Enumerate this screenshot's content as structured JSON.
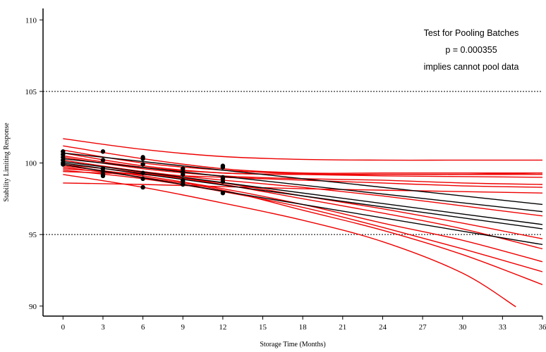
{
  "chart_data": {
    "type": "line",
    "title": "",
    "xlabel": "Storage Time (Months)",
    "ylabel": "Stability Limiting Response",
    "xlim": [
      -1.5,
      36
    ],
    "ylim": [
      89.3,
      110.8
    ],
    "xticks": [
      0,
      3,
      6,
      9,
      12,
      15,
      18,
      21,
      24,
      27,
      30,
      33,
      36
    ],
    "yticks": [
      90,
      95,
      100,
      105,
      110
    ],
    "reference_lines": [
      95,
      105
    ],
    "annotations": [
      "Test for Pooling Batches",
      "p = 0.000355",
      "implies cannot pool data"
    ],
    "colors": {
      "fit_line": "#000000",
      "confidence_band": "#ee0000",
      "points": "#000000",
      "reference_line": "#000000"
    },
    "points": [
      {
        "x": 0,
        "y": 100.8
      },
      {
        "x": 0,
        "y": 100.6
      },
      {
        "x": 0,
        "y": 100.4
      },
      {
        "x": 0,
        "y": 100.2
      },
      {
        "x": 0,
        "y": 100.0
      },
      {
        "x": 0,
        "y": 99.9
      },
      {
        "x": 3,
        "y": 100.8
      },
      {
        "x": 3,
        "y": 100.2
      },
      {
        "x": 3,
        "y": 99.6
      },
      {
        "x": 3,
        "y": 99.4
      },
      {
        "x": 3,
        "y": 99.2
      },
      {
        "x": 3,
        "y": 99.1
      },
      {
        "x": 6,
        "y": 100.4
      },
      {
        "x": 6,
        "y": 100.3
      },
      {
        "x": 6,
        "y": 99.9
      },
      {
        "x": 6,
        "y": 99.3
      },
      {
        "x": 6,
        "y": 98.9
      },
      {
        "x": 6,
        "y": 98.3
      },
      {
        "x": 9,
        "y": 99.6
      },
      {
        "x": 9,
        "y": 99.4
      },
      {
        "x": 9,
        "y": 99.2
      },
      {
        "x": 9,
        "y": 98.8
      },
      {
        "x": 9,
        "y": 98.7
      },
      {
        "x": 9,
        "y": 98.5
      },
      {
        "x": 12,
        "y": 99.8
      },
      {
        "x": 12,
        "y": 99.7
      },
      {
        "x": 12,
        "y": 99.0
      },
      {
        "x": 12,
        "y": 98.9
      },
      {
        "x": 12,
        "y": 98.7
      },
      {
        "x": 12,
        "y": 97.9
      }
    ],
    "series": [
      {
        "kind": "fit",
        "x": [
          0,
          36
        ],
        "y": [
          100.7,
          97.1
        ]
      },
      {
        "kind": "fit",
        "x": [
          0,
          36
        ],
        "y": [
          100.3,
          96.6
        ]
      },
      {
        "kind": "fit",
        "x": [
          0,
          36
        ],
        "y": [
          100.1,
          95.7
        ]
      },
      {
        "kind": "fit",
        "x": [
          0,
          36
        ],
        "y": [
          100.0,
          95.4
        ]
      },
      {
        "kind": "fit",
        "x": [
          0,
          36
        ],
        "y": [
          99.9,
          94.3
        ]
      },
      {
        "kind": "band",
        "x": [
          0,
          6,
          12,
          18,
          24,
          30,
          36
        ],
        "y": [
          101.7,
          100.95,
          100.45,
          100.25,
          100.2,
          100.2,
          100.2
        ]
      },
      {
        "kind": "band",
        "x": [
          0,
          6,
          12,
          18,
          24,
          30,
          36
        ],
        "y": [
          98.6,
          98.5,
          98.35,
          98.2,
          98.1,
          98.0,
          97.9
        ]
      },
      {
        "kind": "band",
        "x": [
          0,
          6,
          12,
          18,
          24,
          30,
          36
        ],
        "y": [
          101.2,
          100.3,
          99.6,
          99.3,
          99.3,
          99.3,
          99.3
        ]
      },
      {
        "kind": "band",
        "x": [
          0,
          6,
          12,
          18,
          24,
          30,
          36
        ],
        "y": [
          99.4,
          99.2,
          99.0,
          98.8,
          98.6,
          98.4,
          98.3
        ]
      },
      {
        "kind": "band",
        "x": [
          0,
          6,
          12,
          18,
          24,
          30,
          36
        ],
        "y": [
          100.9,
          100.0,
          99.5,
          99.25,
          99.2,
          99.2,
          99.2
        ]
      },
      {
        "kind": "band",
        "x": [
          0,
          6,
          12,
          18,
          24,
          30,
          36
        ],
        "y": [
          100.7,
          99.8,
          99.3,
          99.2,
          99.1,
          99.05,
          99.0
        ]
      },
      {
        "kind": "band",
        "x": [
          0,
          6,
          12,
          18,
          24,
          30,
          36
        ],
        "y": [
          100.5,
          99.7,
          99.3,
          99.2,
          99.2,
          99.2,
          99.3
        ]
      },
      {
        "kind": "band",
        "x": [
          0,
          6,
          12,
          18,
          24,
          30,
          36
        ],
        "y": [
          100.4,
          99.6,
          99.1,
          98.9,
          98.8,
          98.6,
          98.5
        ]
      },
      {
        "kind": "band",
        "x": [
          0,
          6,
          12,
          18,
          24,
          30,
          36
        ],
        "y": [
          100.2,
          99.4,
          98.8,
          98.3,
          97.7,
          97.0,
          96.3
        ]
      },
      {
        "kind": "band",
        "x": [
          0,
          6,
          12,
          18,
          24,
          30,
          36
        ],
        "y": [
          99.6,
          99.2,
          98.6,
          97.7,
          96.8,
          95.8,
          94.7
        ]
      },
      {
        "kind": "band",
        "x": [
          0,
          6,
          12,
          18,
          24,
          30,
          36
        ],
        "y": [
          99.9,
          99.3,
          98.5,
          97.5,
          96.5,
          95.4,
          94.0
        ]
      },
      {
        "kind": "band",
        "x": [
          0,
          6,
          12,
          18,
          24,
          30,
          36
        ],
        "y": [
          99.8,
          99.1,
          98.2,
          97.1,
          95.8,
          94.6,
          93.1
        ]
      },
      {
        "kind": "band",
        "x": [
          0,
          6,
          12,
          18,
          24,
          30,
          36
        ],
        "y": [
          99.5,
          98.9,
          98.0,
          96.9,
          95.5,
          94.0,
          92.4
        ]
      },
      {
        "kind": "band",
        "x": [
          0,
          6,
          12,
          18,
          24,
          30,
          36
        ],
        "y": [
          99.7,
          99.0,
          98.1,
          96.7,
          95.3,
          93.6,
          91.5
        ]
      },
      {
        "kind": "band",
        "x": [
          0,
          6,
          12,
          18,
          24,
          30,
          34
        ],
        "y": [
          99.2,
          98.3,
          97.2,
          96.0,
          94.5,
          92.3,
          89.95
        ]
      }
    ]
  }
}
